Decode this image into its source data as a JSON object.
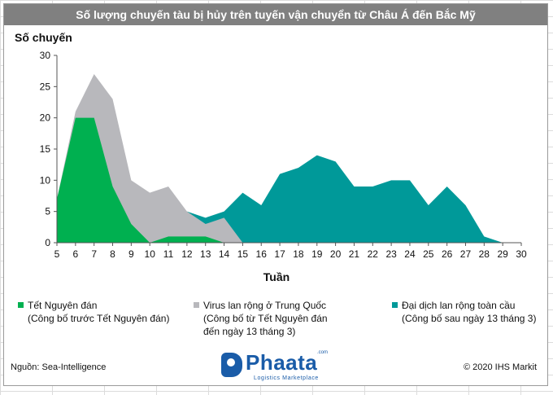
{
  "title": "Số lượng chuyến tàu bị hủy trên tuyến vận chuyển từ Châu Á đến Bắc Mỹ",
  "legend": [
    {
      "line1": "Tết Nguyên đán",
      "line2": "(Công bố trước Tết Nguyên đán)",
      "line3": "",
      "color": "#00b050"
    },
    {
      "line1": "Virus lan rộng ở Trung Quốc",
      "line2": "(Công bố từ Tết Nguyên đán",
      "line3": "đến ngày 13 tháng 3)",
      "color": "#b8b8bc"
    },
    {
      "line1": "Đại dịch lan rộng toàn cầu",
      "line2": "(Công bố sau ngày 13 tháng 3)",
      "line3": "",
      "color": "#009999"
    }
  ],
  "footer": {
    "source": "Nguồn: Sea-Intelligence",
    "copyright": "© 2020 IHS Markit",
    "logo_word": "Phaata",
    "logo_sub": "Logistics Marketplace",
    "logo_com": ".com"
  },
  "chart_data": {
    "type": "area",
    "xlabel": "Tuần",
    "ylabel": "Số chuyến",
    "x": [
      5,
      6,
      7,
      8,
      9,
      10,
      11,
      12,
      13,
      14,
      15,
      16,
      17,
      18,
      19,
      20,
      21,
      22,
      23,
      24,
      25,
      26,
      27,
      28,
      29
    ],
    "xlim": [
      5,
      30
    ],
    "ylim": [
      0,
      30
    ],
    "yticks": [
      0,
      5,
      10,
      15,
      20,
      25,
      30
    ],
    "xticks": [
      5,
      6,
      7,
      8,
      9,
      10,
      11,
      12,
      13,
      14,
      15,
      16,
      17,
      18,
      19,
      20,
      21,
      22,
      23,
      24,
      25,
      26,
      27,
      28,
      29,
      30
    ],
    "series": [
      {
        "name": "Đại dịch lan rộng toàn cầu",
        "color": "#009999",
        "values": [
          7,
          0,
          0,
          0,
          0,
          0,
          0,
          5,
          4,
          5,
          8,
          6,
          11,
          12,
          14,
          13,
          9,
          9,
          10,
          10,
          6,
          9,
          6,
          1,
          0
        ]
      },
      {
        "name": "Virus lan rộng ở Trung Quốc",
        "color": "#b8b8bc",
        "values": [
          7,
          21,
          27,
          23,
          10,
          8,
          9,
          5,
          3,
          4,
          0,
          0,
          0,
          0,
          0,
          0,
          0,
          0,
          0,
          0,
          0,
          0,
          0,
          0,
          0
        ]
      },
      {
        "name": "Tết Nguyên đán",
        "color": "#00b050",
        "values": [
          7,
          20,
          20,
          9,
          3,
          0,
          1,
          1,
          1,
          0,
          0,
          0,
          0,
          0,
          0,
          0,
          0,
          0,
          0,
          0,
          0,
          0,
          0,
          0,
          0
        ]
      }
    ]
  }
}
